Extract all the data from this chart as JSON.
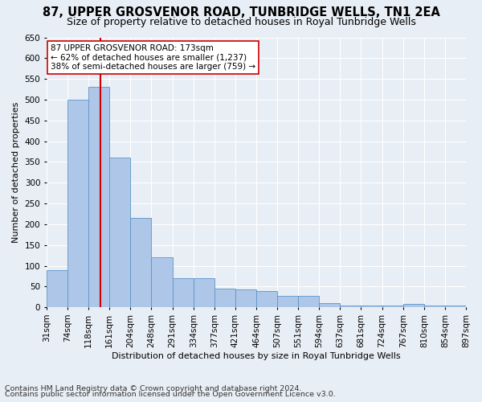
{
  "title": "87, UPPER GROSVENOR ROAD, TUNBRIDGE WELLS, TN1 2EA",
  "subtitle": "Size of property relative to detached houses in Royal Tunbridge Wells",
  "xlabel": "Distribution of detached houses by size in Royal Tunbridge Wells",
  "ylabel": "Number of detached properties",
  "footnote1": "Contains HM Land Registry data © Crown copyright and database right 2024.",
  "footnote2": "Contains public sector information licensed under the Open Government Licence v3.0.",
  "tick_labels": [
    "31sqm",
    "74sqm",
    "118sqm",
    "161sqm",
    "204sqm",
    "248sqm",
    "291sqm",
    "334sqm",
    "377sqm",
    "421sqm",
    "464sqm",
    "507sqm",
    "551sqm",
    "594sqm",
    "637sqm",
    "681sqm",
    "724sqm",
    "767sqm",
    "810sqm",
    "854sqm",
    "897sqm"
  ],
  "bar_values": [
    90,
    500,
    530,
    360,
    215,
    120,
    70,
    70,
    45,
    42,
    40,
    28,
    28,
    10,
    5,
    5,
    5,
    8,
    5,
    5
  ],
  "bar_color": "#aec6e8",
  "bar_edge_color": "#5b96c8",
  "vline_color": "#cc0000",
  "vline_pos": 2.55,
  "annotation_text": "87 UPPER GROSVENOR ROAD: 173sqm\n← 62% of detached houses are smaller (1,237)\n38% of semi-detached houses are larger (759) →",
  "annotation_box_color": "#ffffff",
  "annotation_box_edge": "#cc0000",
  "ylim": [
    0,
    650
  ],
  "yticks": [
    0,
    50,
    100,
    150,
    200,
    250,
    300,
    350,
    400,
    450,
    500,
    550,
    600,
    650
  ],
  "bg_color": "#e8eef5",
  "plot_bg_color": "#e8eef5",
  "grid_color": "#ffffff",
  "title_fontsize": 10.5,
  "subtitle_fontsize": 9,
  "axis_label_fontsize": 8,
  "tick_fontsize": 7.5,
  "footnote_fontsize": 6.8,
  "annotation_fontsize": 7.5
}
